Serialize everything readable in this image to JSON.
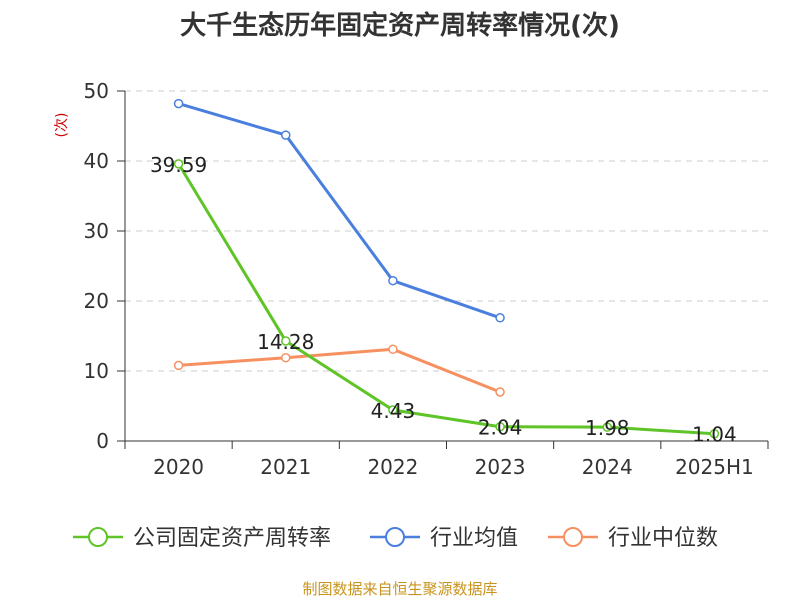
{
  "chart_data": {
    "type": "line",
    "title": "大千生态历年固定资产周转率情况(次)",
    "ylabel": "(次)",
    "categories": [
      "2020",
      "2021",
      "2022",
      "2023",
      "2024",
      "2025H1"
    ],
    "ylim": [
      0,
      50
    ],
    "yticks": [
      0,
      10,
      20,
      30,
      40,
      50
    ],
    "grid": true,
    "legend_position": "bottom",
    "series": [
      {
        "name": "公司固定资产周转率",
        "color": "#5ec427",
        "values": [
          39.59,
          14.28,
          4.43,
          2.04,
          1.98,
          1.04
        ],
        "labels": [
          "39.59",
          "14.28",
          "4.43",
          "2.04",
          "1.98",
          "1.04"
        ]
      },
      {
        "name": "行业均值",
        "color": "#4a7fdd",
        "values": [
          48.2,
          43.7,
          22.9,
          17.6,
          null,
          null
        ]
      },
      {
        "name": "行业中位数",
        "color": "#f79060",
        "values": [
          10.8,
          11.9,
          13.1,
          7.0,
          null,
          null
        ]
      }
    ]
  },
  "colors": {
    "unit_label": "#cc0000",
    "source_text": "#c8941e",
    "axis": "#333333",
    "grid": "#cccccc"
  },
  "source": "制图数据来自恒生聚源数据库"
}
